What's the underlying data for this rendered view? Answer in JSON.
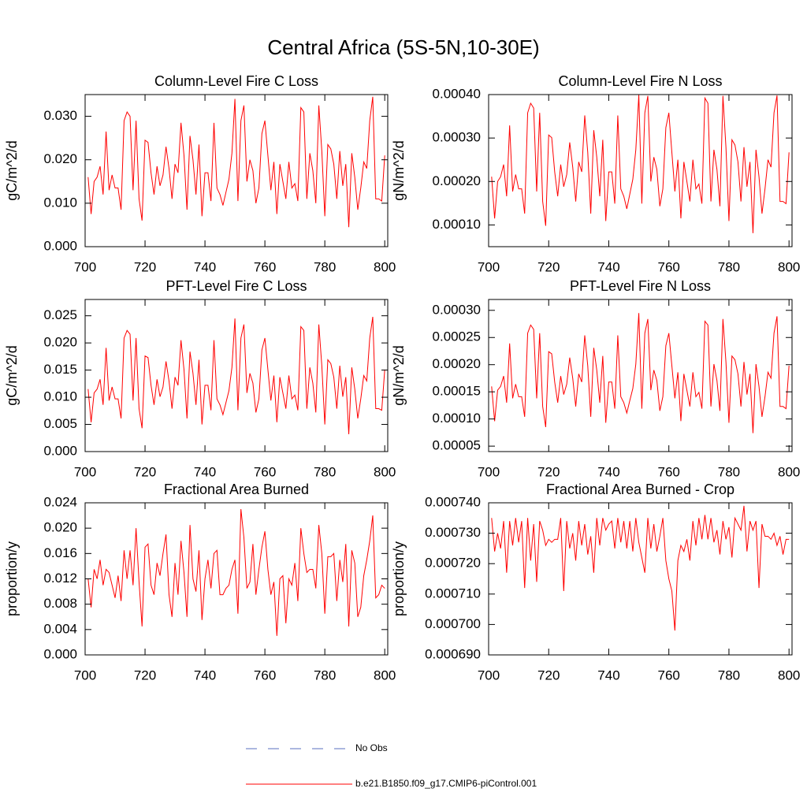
{
  "title": "Central Africa (5S-5N,10-30E)",
  "x": [
    701,
    702,
    703,
    704,
    705,
    706,
    707,
    708,
    709,
    710,
    711,
    712,
    713,
    714,
    715,
    716,
    717,
    718,
    719,
    720,
    721,
    722,
    723,
    724,
    725,
    726,
    727,
    728,
    729,
    730,
    731,
    732,
    733,
    734,
    735,
    736,
    737,
    738,
    739,
    740,
    741,
    742,
    743,
    744,
    745,
    746,
    747,
    748,
    749,
    750,
    751,
    752,
    753,
    754,
    755,
    756,
    757,
    758,
    759,
    760,
    761,
    762,
    763,
    764,
    765,
    766,
    767,
    768,
    769,
    770,
    771,
    772,
    773,
    774,
    775,
    776,
    777,
    778,
    779,
    780,
    781,
    782,
    783,
    784,
    785,
    786,
    787,
    788,
    789,
    790,
    791,
    792,
    793,
    794,
    795,
    796,
    797,
    798,
    799,
    800
  ],
  "legend": [
    {
      "name": "No Obs",
      "color": "#5a6fbf",
      "dash": true
    },
    {
      "name": "b.e21.B1850.f09_g17.CMIP6-piControl.001",
      "color": "#ff0000"
    }
  ],
  "chart_data": [
    {
      "type": "line",
      "title": "Column-Level Fire C Loss",
      "ylabel": "gC/m^2/d",
      "color": "#ff0000",
      "xlim": [
        700,
        801
      ],
      "ylim": [
        0,
        0.035
      ],
      "xticks": [
        700,
        720,
        740,
        760,
        780,
        800
      ],
      "yticks": [
        {
          "value": 0,
          "label": "0.000"
        },
        {
          "value": 0.01,
          "label": "0.010"
        },
        {
          "value": 0.02,
          "label": "0.020"
        },
        {
          "value": 0.03,
          "label": "0.030"
        }
      ],
      "values": [
        0.016,
        0.0075,
        0.015,
        0.016,
        0.0185,
        0.012,
        0.0265,
        0.013,
        0.0165,
        0.0135,
        0.0135,
        0.0085,
        0.029,
        0.031,
        0.03,
        0.013,
        0.029,
        0.011,
        0.006,
        0.0245,
        0.024,
        0.017,
        0.012,
        0.0185,
        0.014,
        0.0165,
        0.023,
        0.018,
        0.011,
        0.019,
        0.017,
        0.0285,
        0.021,
        0.0085,
        0.0255,
        0.02,
        0.012,
        0.0235,
        0.007,
        0.017,
        0.017,
        0.0105,
        0.0285,
        0.0135,
        0.012,
        0.0095,
        0.0125,
        0.0155,
        0.0215,
        0.034,
        0.0105,
        0.029,
        0.0325,
        0.015,
        0.02,
        0.0175,
        0.01,
        0.0135,
        0.026,
        0.029,
        0.021,
        0.013,
        0.0195,
        0.0075,
        0.019,
        0.015,
        0.011,
        0.0195,
        0.0135,
        0.0145,
        0.0105,
        0.032,
        0.031,
        0.011,
        0.0215,
        0.0175,
        0.01,
        0.0325,
        0.022,
        0.007,
        0.0235,
        0.0225,
        0.019,
        0.011,
        0.022,
        0.014,
        0.019,
        0.0045,
        0.0215,
        0.016,
        0.0085,
        0.0135,
        0.0195,
        0.018,
        0.029,
        0.0345,
        0.011,
        0.011,
        0.0105,
        0.021
      ]
    },
    {
      "type": "line",
      "title": "Column-Level Fire N Loss",
      "ylabel": "gN/m^2/d",
      "color": "#ff0000",
      "xlim": [
        700,
        801
      ],
      "ylim": [
        5e-05,
        0.0004
      ],
      "xticks": [
        700,
        720,
        740,
        760,
        780,
        800
      ],
      "yticks": [
        {
          "value": 0.0001,
          "label": "0.00010"
        },
        {
          "value": 0.0002,
          "label": "0.00020"
        },
        {
          "value": 0.0003,
          "label": "0.00030"
        },
        {
          "value": 0.0004,
          "label": "0.00040"
        }
      ],
      "values": [
        0.000211,
        0.000115,
        0.0002,
        0.000211,
        0.000239,
        0.000166,
        0.000329,
        0.000177,
        0.000216,
        0.000183,
        0.000183,
        0.000126,
        0.000358,
        0.00038,
        0.000369,
        0.000177,
        0.000358,
        0.000154,
        9.8e-05,
        0.000307,
        0.000301,
        0.000222,
        0.000166,
        0.000239,
        0.000188,
        0.000216,
        0.00029,
        0.000233,
        0.000154,
        0.000245,
        0.000222,
        0.000352,
        0.000267,
        0.000126,
        0.000318,
        0.000256,
        0.000166,
        0.000296,
        0.000109,
        0.000222,
        0.000222,
        0.000149,
        0.000352,
        0.000183,
        0.000166,
        0.000137,
        0.000171,
        0.000205,
        0.000273,
        0.000399,
        0.000149,
        0.000358,
        0.000397,
        0.0002,
        0.000256,
        0.000228,
        0.000143,
        0.000183,
        0.000324,
        0.000358,
        0.000267,
        0.000177,
        0.00025,
        0.000115,
        0.000245,
        0.0002,
        0.000154,
        0.00025,
        0.000183,
        0.000194,
        0.000149,
        0.000392,
        0.00038,
        0.000154,
        0.000273,
        0.000228,
        0.000143,
        0.000397,
        0.000279,
        0.000109,
        0.000296,
        0.000284,
        0.000245,
        0.000154,
        0.000279,
        0.000188,
        0.000245,
        8.1e-05,
        0.000273,
        0.000211,
        0.000126,
        0.000183,
        0.00025,
        0.000233,
        0.000358,
        0.000398,
        0.000154,
        0.000154,
        0.000149,
        0.000267
      ]
    },
    {
      "type": "line",
      "title": "PFT-Level Fire C Loss",
      "ylabel": "gC/m^2/d",
      "color": "#ff0000",
      "xlim": [
        700,
        801
      ],
      "ylim": [
        0,
        0.028
      ],
      "xticks": [
        700,
        720,
        740,
        760,
        780,
        800
      ],
      "yticks": [
        {
          "value": 0,
          "label": "0.000"
        },
        {
          "value": 0.005,
          "label": "0.005"
        },
        {
          "value": 0.01,
          "label": "0.010"
        },
        {
          "value": 0.015,
          "label": "0.015"
        },
        {
          "value": 0.02,
          "label": "0.020"
        },
        {
          "value": 0.025,
          "label": "0.025"
        }
      ],
      "values": [
        0.0115,
        0.0054,
        0.0108,
        0.0115,
        0.0133,
        0.0086,
        0.0191,
        0.0094,
        0.0119,
        0.0097,
        0.0097,
        0.0061,
        0.0209,
        0.0223,
        0.0216,
        0.0094,
        0.0209,
        0.0079,
        0.0043,
        0.0176,
        0.0173,
        0.0122,
        0.0086,
        0.0133,
        0.0101,
        0.0119,
        0.0166,
        0.013,
        0.0079,
        0.0137,
        0.0122,
        0.0205,
        0.0151,
        0.0061,
        0.0184,
        0.0144,
        0.0086,
        0.0169,
        0.005,
        0.0122,
        0.0122,
        0.0076,
        0.0205,
        0.0097,
        0.0086,
        0.0068,
        0.009,
        0.0112,
        0.0155,
        0.0245,
        0.0076,
        0.0209,
        0.0234,
        0.0108,
        0.0144,
        0.0126,
        0.0072,
        0.0097,
        0.0187,
        0.0209,
        0.0151,
        0.0094,
        0.014,
        0.0054,
        0.0137,
        0.0108,
        0.0079,
        0.014,
        0.0097,
        0.0104,
        0.0076,
        0.023,
        0.0223,
        0.0079,
        0.0155,
        0.0126,
        0.0072,
        0.0234,
        0.0158,
        0.005,
        0.0169,
        0.0162,
        0.0137,
        0.0079,
        0.0158,
        0.0101,
        0.0137,
        0.0032,
        0.0155,
        0.0115,
        0.0061,
        0.0097,
        0.014,
        0.013,
        0.0209,
        0.0248,
        0.0079,
        0.0079,
        0.0076,
        0.0151
      ]
    },
    {
      "type": "line",
      "title": "PFT-Level Fire N Loss",
      "ylabel": "gN/m^2/d",
      "color": "#ff0000",
      "xlim": [
        700,
        801
      ],
      "ylim": [
        4e-05,
        0.00032
      ],
      "xticks": [
        700,
        720,
        740,
        760,
        780,
        800
      ],
      "yticks": [
        {
          "value": 5e-05,
          "label": "0.00005"
        },
        {
          "value": 0.0001,
          "label": "0.00010"
        },
        {
          "value": 0.00015,
          "label": "0.00015"
        },
        {
          "value": 0.0002,
          "label": "0.00020"
        },
        {
          "value": 0.00025,
          "label": "0.00025"
        },
        {
          "value": 0.0003,
          "label": "0.00030"
        }
      ],
      "values": [
        0.00016,
        9.6e-05,
        0.000153,
        0.00016,
        0.000179,
        0.00013,
        0.000239,
        0.000138,
        0.000164,
        0.000141,
        0.000141,
        0.000104,
        0.000258,
        0.000273,
        0.000265,
        0.000138,
        0.000258,
        0.000123,
        8.5e-05,
        0.000224,
        0.00022,
        0.000168,
        0.00013,
        0.000179,
        0.000145,
        0.000164,
        0.000213,
        0.000175,
        0.000123,
        0.000183,
        0.000168,
        0.000254,
        0.000198,
        0.000104,
        0.000231,
        0.00019,
        0.00013,
        0.000216,
        9.3e-05,
        0.000168,
        0.000168,
        0.000119,
        0.000254,
        0.000141,
        0.00013,
        0.000111,
        0.000134,
        0.000156,
        0.000201,
        0.000295,
        0.000119,
        0.000258,
        0.000284,
        0.000153,
        0.00019,
        0.000171,
        0.000115,
        0.000141,
        0.000235,
        0.000258,
        0.000198,
        0.000138,
        0.000186,
        9.6e-05,
        0.000183,
        0.000153,
        0.000123,
        0.000186,
        0.000141,
        0.000149,
        0.000119,
        0.00028,
        0.000273,
        0.000123,
        0.000201,
        0.000171,
        0.000115,
        0.000284,
        0.000205,
        9.3e-05,
        0.000216,
        0.000209,
        0.000183,
        0.000123,
        0.000205,
        0.000145,
        0.000183,
        7.4e-05,
        0.000201,
        0.00016,
        0.000104,
        0.000141,
        0.000186,
        0.000175,
        0.000258,
        0.000289,
        0.000123,
        0.000123,
        0.000119,
        0.000198
      ]
    },
    {
      "type": "line",
      "title": "Fractional Area Burned",
      "ylabel": "proportion/y",
      "color": "#ff0000",
      "xlim": [
        700,
        801
      ],
      "ylim": [
        0,
        0.024
      ],
      "xticks": [
        700,
        720,
        740,
        760,
        780,
        800
      ],
      "yticks": [
        {
          "value": 0,
          "label": "0.000"
        },
        {
          "value": 0.004,
          "label": "0.004"
        },
        {
          "value": 0.008,
          "label": "0.008"
        },
        {
          "value": 0.012,
          "label": "0.012"
        },
        {
          "value": 0.016,
          "label": "0.016"
        },
        {
          "value": 0.02,
          "label": "0.020"
        },
        {
          "value": 0.024,
          "label": "0.024"
        }
      ],
      "values": [
        0.012,
        0.0075,
        0.0135,
        0.012,
        0.015,
        0.011,
        0.0135,
        0.013,
        0.011,
        0.009,
        0.0125,
        0.0085,
        0.0165,
        0.012,
        0.0165,
        0.011,
        0.02,
        0.0115,
        0.0045,
        0.017,
        0.0175,
        0.011,
        0.0095,
        0.0145,
        0.0125,
        0.016,
        0.019,
        0.0095,
        0.006,
        0.0145,
        0.0095,
        0.018,
        0.013,
        0.006,
        0.0205,
        0.012,
        0.01,
        0.0165,
        0.0055,
        0.012,
        0.015,
        0.0105,
        0.016,
        0.0165,
        0.0095,
        0.0095,
        0.0105,
        0.011,
        0.0135,
        0.015,
        0.0065,
        0.023,
        0.0185,
        0.0105,
        0.0115,
        0.0175,
        0.0095,
        0.0135,
        0.017,
        0.0195,
        0.0135,
        0.0095,
        0.0115,
        0.003,
        0.012,
        0.0125,
        0.005,
        0.012,
        0.011,
        0.0145,
        0.0085,
        0.02,
        0.016,
        0.013,
        0.0135,
        0.0135,
        0.0105,
        0.0205,
        0.016,
        0.0065,
        0.0155,
        0.0155,
        0.016,
        0.0085,
        0.015,
        0.0115,
        0.0175,
        0.0045,
        0.0165,
        0.0145,
        0.006,
        0.0075,
        0.0125,
        0.015,
        0.018,
        0.022,
        0.009,
        0.0095,
        0.011,
        0.0105
      ]
    },
    {
      "type": "line",
      "title": "Fractional Area Burned - Crop",
      "ylabel": "proportion/y",
      "color": "#ff0000",
      "xlim": [
        700,
        801
      ],
      "ylim": [
        0.00069,
        0.00074
      ],
      "xticks": [
        700,
        720,
        740,
        760,
        780,
        800
      ],
      "yticks": [
        {
          "value": 0.00069,
          "label": "0.000690"
        },
        {
          "value": 0.0007,
          "label": "0.000700"
        },
        {
          "value": 0.00071,
          "label": "0.000710"
        },
        {
          "value": 0.00072,
          "label": "0.000720"
        },
        {
          "value": 0.00073,
          "label": "0.000730"
        },
        {
          "value": 0.00074,
          "label": "0.000740"
        }
      ],
      "values": [
        0.000735,
        0.000724,
        0.00073,
        0.000725,
        0.000734,
        0.000717,
        0.000734,
        0.000726,
        0.000735,
        0.000727,
        0.000734,
        0.000712,
        0.000735,
        0.000721,
        0.000733,
        0.000714,
        0.000734,
        0.000731,
        0.000726,
        0.000728,
        0.000727,
        0.000728,
        0.000728,
        0.000735,
        0.000711,
        0.000734,
        0.000725,
        0.00073,
        0.000721,
        0.000734,
        0.000726,
        0.000733,
        0.000723,
        0.000729,
        0.000717,
        0.000735,
        0.000726,
        0.000735,
        0.000731,
        0.000733,
        0.000734,
        0.000725,
        0.000735,
        0.000727,
        0.000734,
        0.000725,
        0.000734,
        0.000724,
        0.000735,
        0.000727,
        0.000722,
        0.000717,
        0.000735,
        0.000725,
        0.000733,
        0.000724,
        0.000729,
        0.000735,
        0.000721,
        0.000715,
        0.000711,
        0.000698,
        0.000721,
        0.000726,
        0.000724,
        0.000728,
        0.000721,
        0.000734,
        0.000726,
        0.000735,
        0.000728,
        0.000736,
        0.000728,
        0.000735,
        0.000727,
        0.000731,
        0.000723,
        0.000734,
        0.000728,
        0.000732,
        0.000722,
        0.000735,
        0.000733,
        0.000731,
        0.000739,
        0.000724,
        0.000734,
        0.000731,
        0.000734,
        0.000712,
        0.000733,
        0.000729,
        0.000729,
        0.000728,
        0.00073,
        0.000726,
        0.000729,
        0.000723,
        0.000728,
        0.000728
      ]
    }
  ]
}
